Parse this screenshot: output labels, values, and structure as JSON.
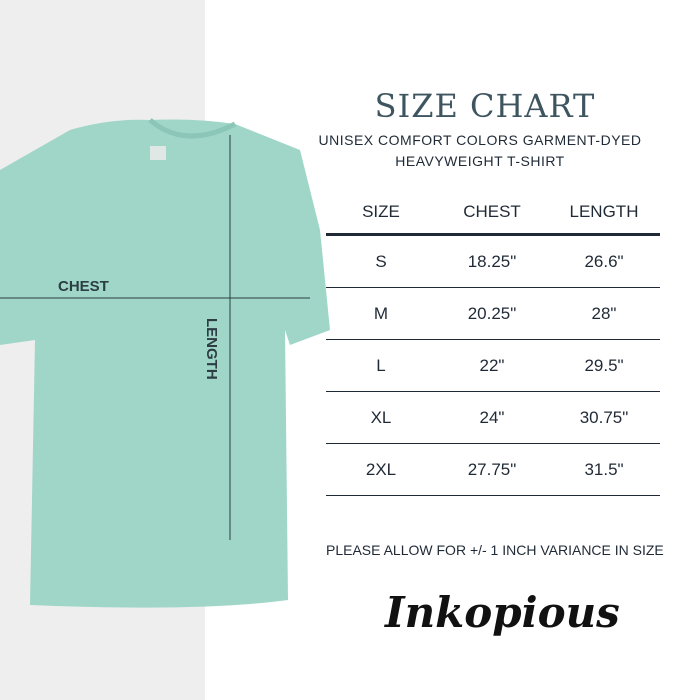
{
  "header": {
    "title": "SIZE CHART",
    "subtitle_line1": "UNISEX COMFORT COLORS GARMENT-DYED",
    "subtitle_line2": "HEAVYWEIGHT T-SHIRT"
  },
  "shirt": {
    "color": "#9fd6c8",
    "chest_label": "CHEST",
    "length_label": "LENGTH"
  },
  "table": {
    "headers": [
      "SIZE",
      "CHEST",
      "LENGTH"
    ],
    "rows": [
      [
        "S",
        "18.25\"",
        "26.6\""
      ],
      [
        "M",
        "20.25\"",
        "28\""
      ],
      [
        "L",
        "22\"",
        "29.5\""
      ],
      [
        "XL",
        "24\"",
        "30.75\""
      ],
      [
        "2XL",
        "27.75\"",
        "31.5\""
      ]
    ]
  },
  "note": "PLEASE ALLOW FOR +/- 1 INCH VARIANCE IN SIZE",
  "logo": "Inkopious"
}
